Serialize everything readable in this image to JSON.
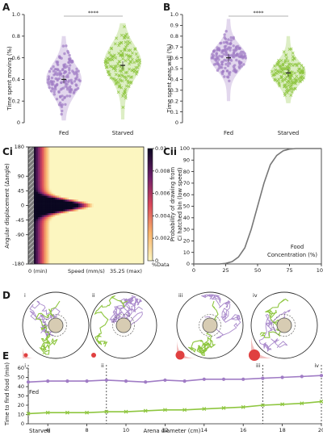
{
  "panels": {
    "A": "A",
    "B": "B",
    "Ci": "Ci",
    "Cii": "Cii",
    "D": "D",
    "E": "E"
  },
  "chart_data": [
    {
      "id": "A",
      "type": "scatter",
      "ylabel": "Time spent moving (%)",
      "categories": [
        "Fed",
        "Starved"
      ],
      "ylim": [
        0,
        1
      ],
      "yticks": [
        "0",
        "0.2",
        "0.4",
        "0.6",
        "0.8",
        "1.0"
      ],
      "significance": "****",
      "means": [
        0.4,
        0.53
      ]
    },
    {
      "id": "B",
      "type": "scatter",
      "ylabel": "Time spent near wall (%)",
      "categories": [
        "Fed",
        "Starved"
      ],
      "ylim": [
        0,
        1
      ],
      "yticks": [
        "0",
        "0.1",
        "0.2",
        "0.3",
        "0.4",
        "0.5",
        "0.6",
        "0.7",
        "0.8",
        "0.9",
        "1.0"
      ],
      "significance": "****",
      "means": [
        0.6,
        0.46
      ]
    },
    {
      "id": "Ci",
      "type": "heatmap",
      "ylabel": "Angular displacement (Δangle)",
      "yticks": [
        "180",
        "90",
        "45",
        "0",
        "-45",
        "-90",
        "-180"
      ],
      "xlabel_left": "0 (min)",
      "xlabel_mid": "Speed (mm/s)",
      "xlabel_right": "35.25 (max)",
      "colorbar_ticks": [
        "0.01",
        "0.008",
        "0.006",
        "0.004",
        "0.002",
        "0"
      ],
      "colorbar_label": "%Data"
    },
    {
      "id": "Cii",
      "type": "line",
      "ylabel_1": "Probability of drawing from",
      "ylabel_2": "Ci hatched bin (low speed)",
      "xlabel_1": "Food",
      "xlabel_2": "Concentration (%)",
      "xlim": [
        0,
        100
      ],
      "ylim": [
        0,
        100
      ],
      "xticks": [
        "0",
        "25",
        "50",
        "75",
        "100"
      ],
      "yticks": [
        "0",
        "10",
        "20",
        "30",
        "40",
        "50",
        "60",
        "70",
        "80",
        "90",
        "100"
      ],
      "x": [
        0,
        20,
        25,
        30,
        35,
        40,
        45,
        50,
        55,
        60,
        65,
        70,
        75,
        80,
        100
      ],
      "y": [
        0,
        0,
        0.5,
        2,
        6,
        14,
        30,
        50,
        70,
        86,
        94,
        98,
        99.5,
        100,
        100
      ]
    },
    {
      "id": "D",
      "type": "diagram",
      "labels": [
        "i",
        "ii",
        "iii",
        "iv"
      ]
    },
    {
      "id": "E",
      "type": "line",
      "ylabel": "Time to find food (min)",
      "xlabel": "Arena diameter (cm)",
      "xlim": [
        5,
        20
      ],
      "ylim": [
        0,
        60
      ],
      "xticks": [
        "6",
        "8",
        "10",
        "12",
        "14",
        "16",
        "18",
        "20"
      ],
      "yticks": [
        "0",
        "10",
        "20",
        "30",
        "40",
        "50",
        "60"
      ],
      "markers": [
        "i",
        "ii",
        "iii",
        "iv"
      ],
      "marker_x": [
        5,
        9,
        17,
        20
      ],
      "series": [
        {
          "name": "Fed",
          "x": [
            5,
            6,
            7,
            8,
            9,
            10,
            11,
            12,
            13,
            14,
            15,
            16,
            17,
            18,
            19,
            20
          ],
          "values": [
            45,
            46,
            46,
            46,
            47,
            46,
            45,
            47,
            46,
            48,
            48,
            48,
            49,
            50,
            51,
            52
          ]
        },
        {
          "name": "Starved",
          "x": [
            5,
            6,
            7,
            8,
            9,
            10,
            11,
            12,
            13,
            14,
            15,
            16,
            17,
            18,
            19,
            20
          ],
          "values": [
            11,
            12,
            12,
            12,
            13,
            13,
            14,
            15,
            15,
            16,
            17,
            18,
            20,
            21,
            22,
            24
          ]
        }
      ]
    }
  ],
  "colors": {
    "fed": "#a07cc5",
    "starved": "#8ec63f",
    "food": "#e04040"
  }
}
